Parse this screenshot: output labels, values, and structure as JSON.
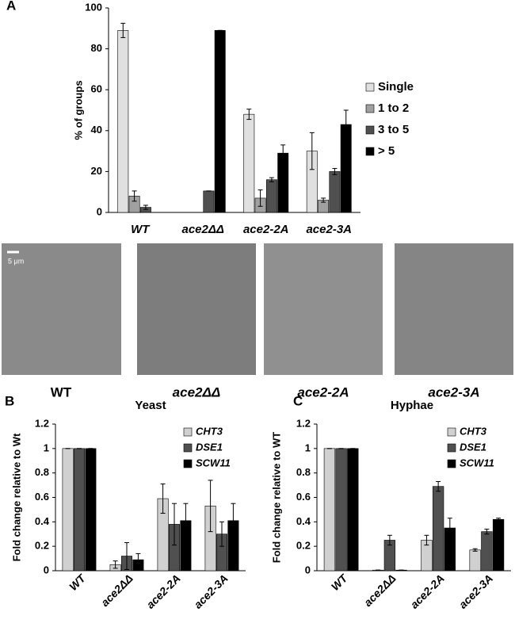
{
  "chart_data": [
    {
      "type": "bar",
      "panel": "A",
      "y_label": "% of groups",
      "categories": [
        "WT",
        "ace2ΔΔ",
        "ace2-2A",
        "ace2-3A"
      ],
      "series": [
        {
          "name": "Single",
          "color": "#e0e0e0",
          "values": [
            89,
            0,
            48,
            30
          ],
          "errors": [
            3.5,
            0,
            2.5,
            9
          ]
        },
        {
          "name": "1 to 2",
          "color": "#a0a0a0",
          "values": [
            8,
            0,
            7,
            6
          ],
          "errors": [
            2.5,
            0,
            4,
            1
          ]
        },
        {
          "name": "3 to 5",
          "color": "#505050",
          "values": [
            2.5,
            10.5,
            16,
            20
          ],
          "errors": [
            1,
            0,
            1,
            1.5
          ]
        },
        {
          "name": "> 5",
          "color": "#000000",
          "values": [
            0,
            89,
            29,
            43
          ],
          "errors": [
            0,
            0,
            4,
            7
          ]
        }
      ],
      "ylim": [
        0,
        100
      ],
      "yticks": [
        0,
        20,
        40,
        60,
        80,
        100
      ],
      "grid": false
    },
    {
      "type": "bar",
      "panel": "B",
      "title": "Yeast",
      "y_label": "Fold change relative to Wt",
      "categories": [
        "WT",
        "ace2ΔΔ",
        "ace2-2A",
        "ace2-3A"
      ],
      "series": [
        {
          "name": "CHT3",
          "color": "#d0d0d0",
          "values": [
            1,
            0.05,
            0.59,
            0.53
          ],
          "errors": [
            0,
            0.03,
            0.12,
            0.21
          ]
        },
        {
          "name": "DSE1",
          "color": "#505050",
          "values": [
            1,
            0.12,
            0.38,
            0.3
          ],
          "errors": [
            0,
            0.11,
            0.17,
            0.1
          ]
        },
        {
          "name": "SCW11",
          "color": "#000000",
          "values": [
            1,
            0.09,
            0.41,
            0.41
          ],
          "errors": [
            0,
            0.05,
            0.14,
            0.14
          ]
        }
      ],
      "ylim": [
        0,
        1.2
      ],
      "yticks": [
        0,
        0.2,
        0.4,
        0.6,
        0.8,
        1,
        1.2
      ],
      "grid": false
    },
    {
      "type": "bar",
      "panel": "C",
      "title": "Hyphae",
      "y_label": "Fold change relative to WT",
      "categories": [
        "WT",
        "ace2ΔΔ",
        "ace2-2A",
        "ace2-3A"
      ],
      "series": [
        {
          "name": "CHT3",
          "color": "#d0d0d0",
          "values": [
            1,
            0.005,
            0.25,
            0.17
          ],
          "errors": [
            0,
            0,
            0.04,
            0.01
          ]
        },
        {
          "name": "DSE1",
          "color": "#505050",
          "values": [
            1,
            0.25,
            0.69,
            0.32
          ],
          "errors": [
            0,
            0.04,
            0.04,
            0.02
          ]
        },
        {
          "name": "SCW11",
          "color": "#000000",
          "values": [
            1,
            0.005,
            0.35,
            0.42
          ],
          "errors": [
            0,
            0,
            0.08,
            0.01
          ]
        }
      ],
      "ylim": [
        0,
        1.2
      ],
      "yticks": [
        0,
        0.2,
        0.4,
        0.6,
        0.8,
        1,
        1.2
      ],
      "grid": false
    }
  ],
  "micrographs": {
    "scale_bar": "5 μm",
    "captions": [
      "WT",
      "ace2ΔΔ",
      "ace2-2A",
      "ace2-3A"
    ]
  }
}
